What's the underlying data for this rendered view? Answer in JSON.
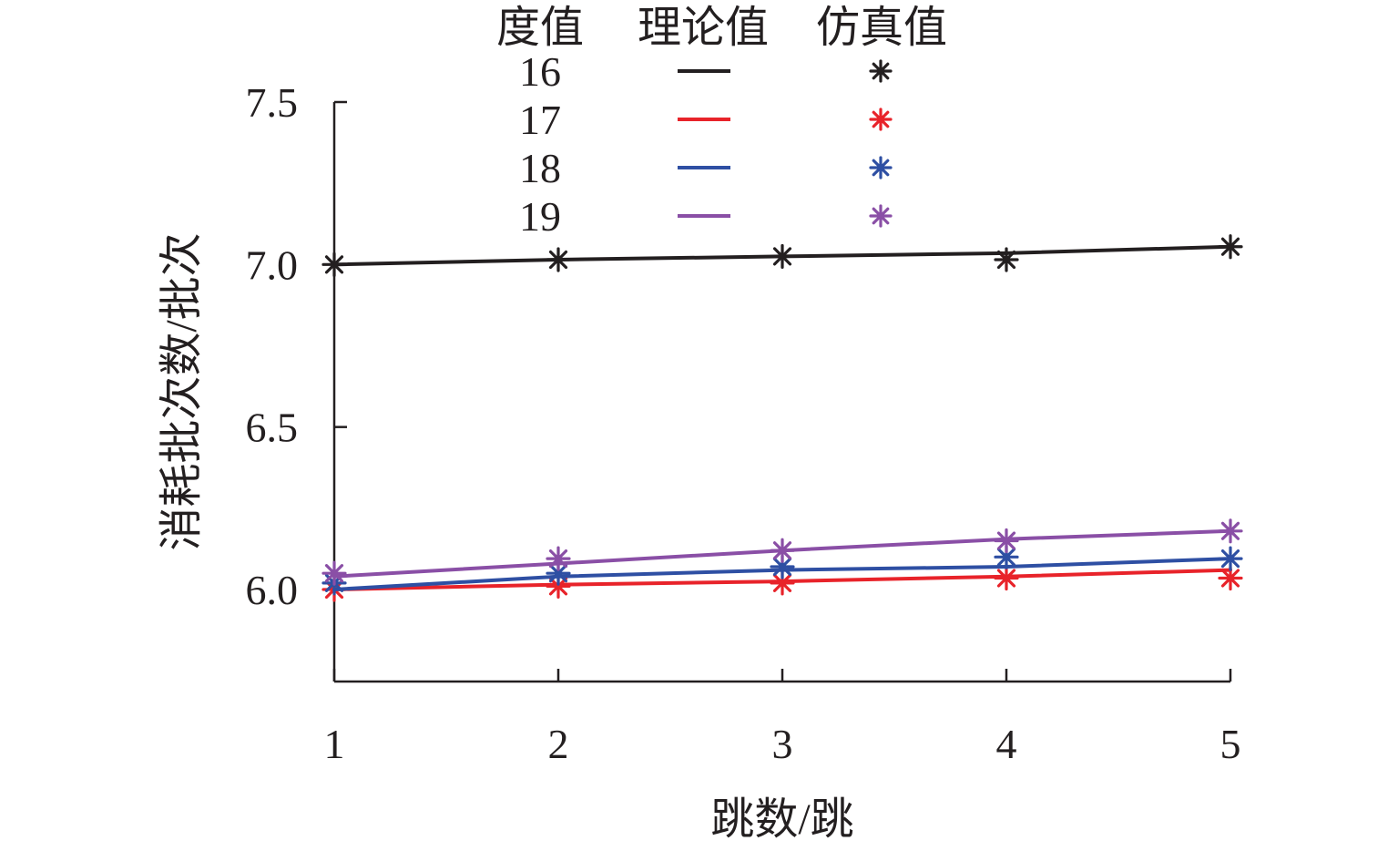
{
  "chart_data": {
    "type": "line",
    "title": "",
    "xlabel": "跳数/跳",
    "ylabel": "消耗批次数/批次",
    "x": [
      1,
      2,
      3,
      4,
      5
    ],
    "xlim": [
      1,
      5
    ],
    "ylim": [
      5.72,
      7.5
    ],
    "yticks": [
      6.0,
      6.5,
      7.0,
      7.5
    ],
    "ytick_labels": [
      "6.0",
      "6.5",
      "7.0",
      "7.5"
    ],
    "xtick_labels": [
      "1",
      "2",
      "3",
      "4",
      "5"
    ],
    "grid": false,
    "legend": {
      "placement": "top-center",
      "header": [
        "度值",
        "理论值",
        "仿真值"
      ]
    },
    "series": [
      {
        "name": "16",
        "color": "#231f20",
        "theoretical": [
          7.0,
          7.015,
          7.025,
          7.035,
          7.055
        ],
        "simulated": [
          7.0,
          7.015,
          7.025,
          7.015,
          7.055
        ]
      },
      {
        "name": "17",
        "color": "#e8232a",
        "theoretical": [
          6.0,
          6.015,
          6.025,
          6.04,
          6.06
        ],
        "simulated": [
          6.0,
          6.01,
          6.02,
          6.035,
          6.035
        ]
      },
      {
        "name": "18",
        "color": "#2e4fa3",
        "theoretical": [
          6.0,
          6.04,
          6.06,
          6.07,
          6.095
        ],
        "simulated": [
          6.02,
          6.05,
          6.07,
          6.1,
          6.095
        ]
      },
      {
        "name": "19",
        "color": "#8a4fa6",
        "theoretical": [
          6.04,
          6.08,
          6.12,
          6.155,
          6.18
        ],
        "simulated": [
          6.05,
          6.095,
          6.12,
          6.15,
          6.18
        ]
      }
    ]
  }
}
